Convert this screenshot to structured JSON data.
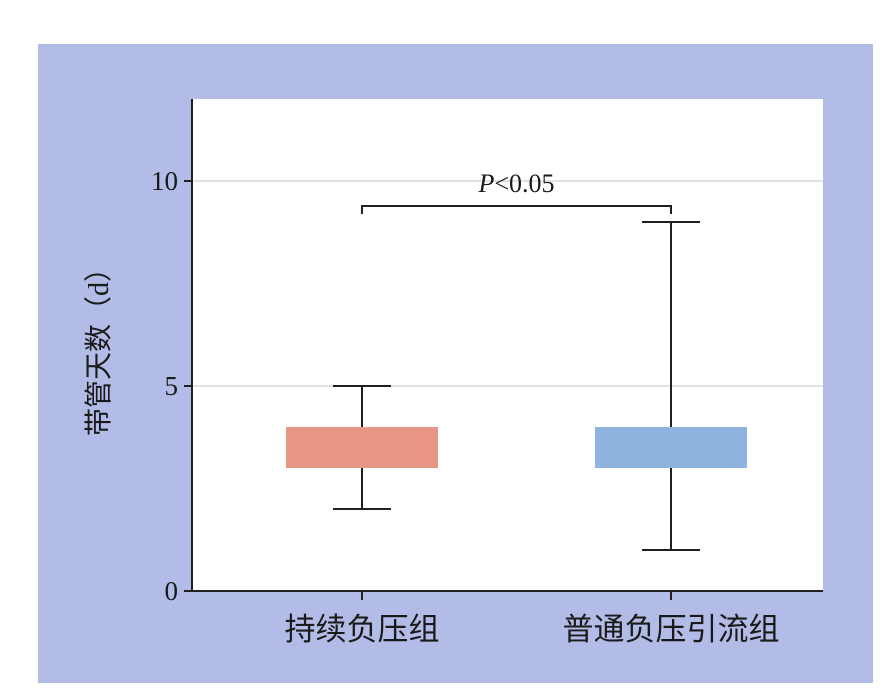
{
  "chart_data": {
    "type": "box",
    "categories": [
      "持续负压组",
      "普通负压引流组"
    ],
    "boxes": [
      {
        "min": 2,
        "q1": 3,
        "q3": 4,
        "max": 5,
        "color": "#e79585"
      },
      {
        "min": 1,
        "q1": 3,
        "q3": 4,
        "max": 9,
        "color": "#8fb3df"
      }
    ],
    "ylabel": "带管天数（d）",
    "ylim": [
      0,
      12
    ],
    "yticks": [
      0,
      5,
      10
    ],
    "ytick_labels": [
      "0",
      "5",
      "10"
    ],
    "grid": "horizontal",
    "annotation": {
      "label_italic": "P",
      "label_rest": "<0.05",
      "between": [
        0,
        1
      ]
    },
    "colors": {
      "panel_background": "#b3bce6",
      "plot_background": "#ffffff",
      "gridline": "#d9d9d9",
      "axis": "#231f20"
    }
  }
}
